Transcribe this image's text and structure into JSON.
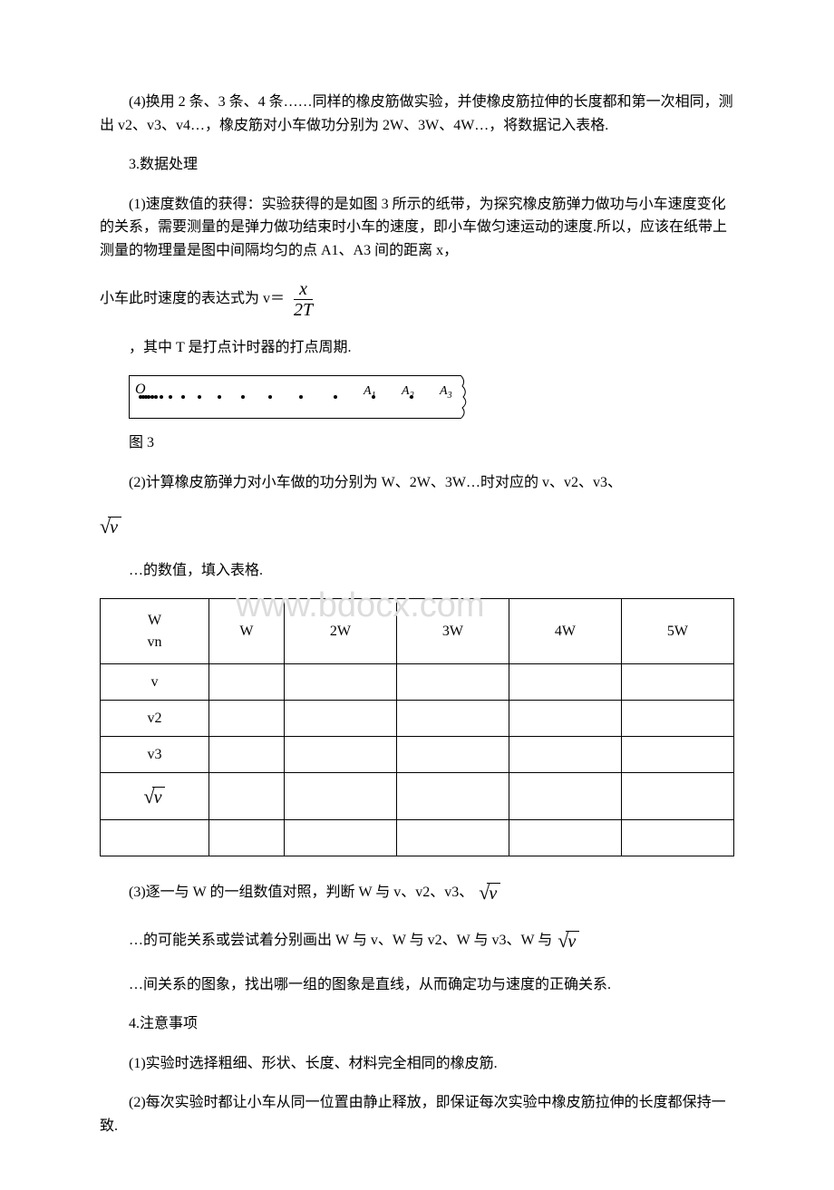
{
  "p1": "(4)换用 2 条、3 条、4 条……同样的橡皮筋做实验，并使橡皮筋拉伸的长度都和第一次相同，测出 v2、v3、v4…，橡皮筋对小车做功分别为 2W、3W、4W…，将数据记入表格.",
  "p2": "3.数据处理",
  "p3": "(1)速度数值的获得：实验获得的是如图 3 所示的纸带，为探究橡皮筋弹力做功与小车速度变化的关系，需要测量的是弹力做功结束时小车的速度，即小车做匀速运动的速度.所以，应该在纸带上测量的物理量是图中间隔均匀的点 A1、A3 间的距离 x，",
  "p4_prefix": "小车此时速度的表达式为 v＝",
  "fraction": {
    "num": "x",
    "den": "2T"
  },
  "p5": "，其中 T 是打点计时器的打点周期.",
  "tape": {
    "O": "O",
    "labels": [
      "A",
      "A",
      "A"
    ],
    "subs": [
      "1",
      "2",
      "3"
    ]
  },
  "fig_caption": "图 3",
  "p6_a": "(2)计算橡皮筋弹力对小车做的功分别为 W、2W、3W…时对应的 v、v2、v3、",
  "sqrt_label": "v",
  "p7": "…的数值，填入表格.",
  "table": {
    "corner_top": "W",
    "corner_bottom": "vn",
    "cols": [
      "W",
      "2W",
      "3W",
      "4W",
      "5W"
    ],
    "rows": [
      "v",
      "v2",
      "v3"
    ]
  },
  "p8_a": "(3)逐一与 W 的一组数值对照，判断 W 与 v、v2、v3、",
  "p9_a": "…的可能关系或尝试着分别画出 W 与 v、W 与 v2、W 与 v3、W 与",
  "p10": "…间关系的图象，找出哪一组的图象是直线，从而确定功与速度的正确关系.",
  "p11": "4.注意事项",
  "p12": "(1)实验时选择粗细、形状、长度、材料完全相同的橡皮筋.",
  "p13": "(2)每次实验时都让小车从同一位置由静止释放，即保证每次实验中橡皮筋拉伸的长度都保持一致.",
  "watermark": "www.bdocx.com"
}
